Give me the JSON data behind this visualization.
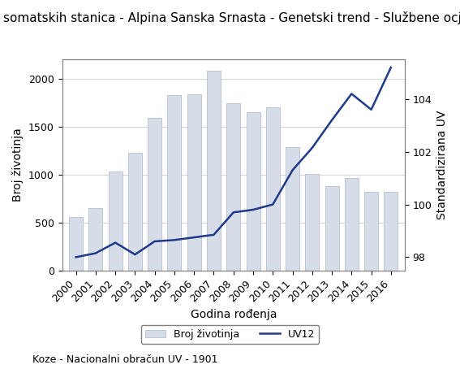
{
  "title": "Broj somatskih stanica - Alpina Sanska Srnasta - Genetski trend - Službene ocjene",
  "xlabel": "Godina rođenja",
  "ylabel_left": "Broj životinja",
  "ylabel_right": "Standardizirana UV",
  "footnote": "Koze - Nacionalni obračun UV - 1901",
  "years": [
    2000,
    2001,
    2002,
    2003,
    2004,
    2005,
    2006,
    2007,
    2008,
    2009,
    2010,
    2011,
    2012,
    2013,
    2014,
    2015,
    2016
  ],
  "bar_values": [
    560,
    650,
    1030,
    1230,
    1590,
    1830,
    1840,
    2080,
    1740,
    1650,
    1700,
    1290,
    1010,
    875,
    960,
    820,
    820
  ],
  "line_values": [
    98.0,
    98.15,
    98.55,
    98.1,
    98.6,
    98.65,
    98.75,
    98.85,
    99.7,
    99.8,
    100.0,
    101.3,
    102.15,
    103.2,
    104.2,
    103.6,
    105.2
  ],
  "bar_color": "#d6dce8",
  "bar_edgecolor": "#adb5c7",
  "line_color": "#1f3a8a",
  "ylim_left": [
    0,
    2200
  ],
  "ylim_right": [
    97.5,
    105.5
  ],
  "yticks_left": [
    0,
    500,
    1000,
    1500,
    2000
  ],
  "yticks_right": [
    98,
    100,
    102,
    104
  ],
  "legend_bar_label": "Broj životinja",
  "legend_line_label": "UV12",
  "title_fontsize": 11,
  "axis_fontsize": 10,
  "tick_fontsize": 9,
  "legend_fontsize": 9,
  "footnote_fontsize": 9
}
